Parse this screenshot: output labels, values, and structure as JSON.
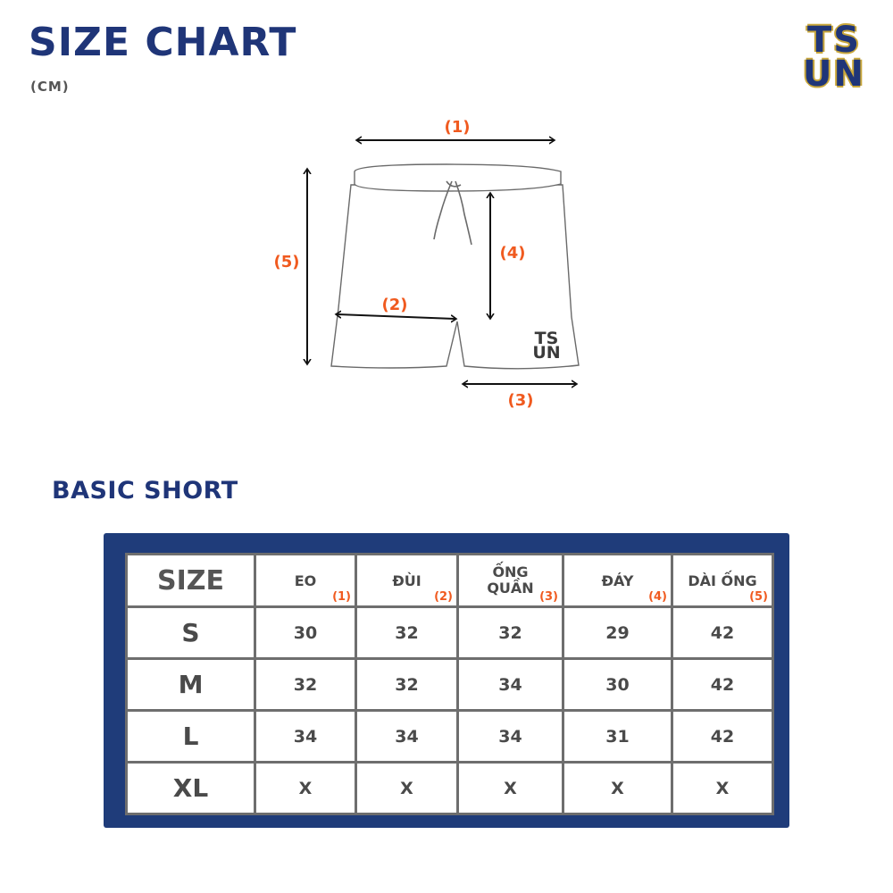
{
  "header": {
    "title": "SIZE CHART",
    "unit": "(CM)",
    "logo_line1": "TS",
    "logo_line2": "UN"
  },
  "diagram": {
    "labels": [
      "(1)",
      "(2)",
      "(3)",
      "(4)",
      "(5)"
    ],
    "garment_logo_line1": "TS",
    "garment_logo_line2": "UN"
  },
  "section": {
    "title": "BASIC SHORT"
  },
  "table": {
    "header_size": "SIZE",
    "columns": [
      {
        "label": "EO",
        "num": "(1)"
      },
      {
        "label": "ĐÙI",
        "num": "(2)"
      },
      {
        "label": "ỐNG QUẦN",
        "num": "(3)"
      },
      {
        "label": "ĐÁY",
        "num": "(4)"
      },
      {
        "label": "DÀI ỐNG",
        "num": "(5)"
      }
    ],
    "rows": [
      {
        "size": "S",
        "values": [
          "30",
          "32",
          "32",
          "29",
          "42"
        ]
      },
      {
        "size": "M",
        "values": [
          "32",
          "32",
          "34",
          "30",
          "42"
        ]
      },
      {
        "size": "L",
        "values": [
          "34",
          "34",
          "34",
          "31",
          "42"
        ]
      },
      {
        "size": "XL",
        "values": [
          "X",
          "X",
          "X",
          "X",
          "X"
        ]
      }
    ]
  },
  "colors": {
    "navy": "#1f3578",
    "frame": "#1f3c7a",
    "accent": "#f05a1f",
    "gold": "#c9a73a"
  }
}
